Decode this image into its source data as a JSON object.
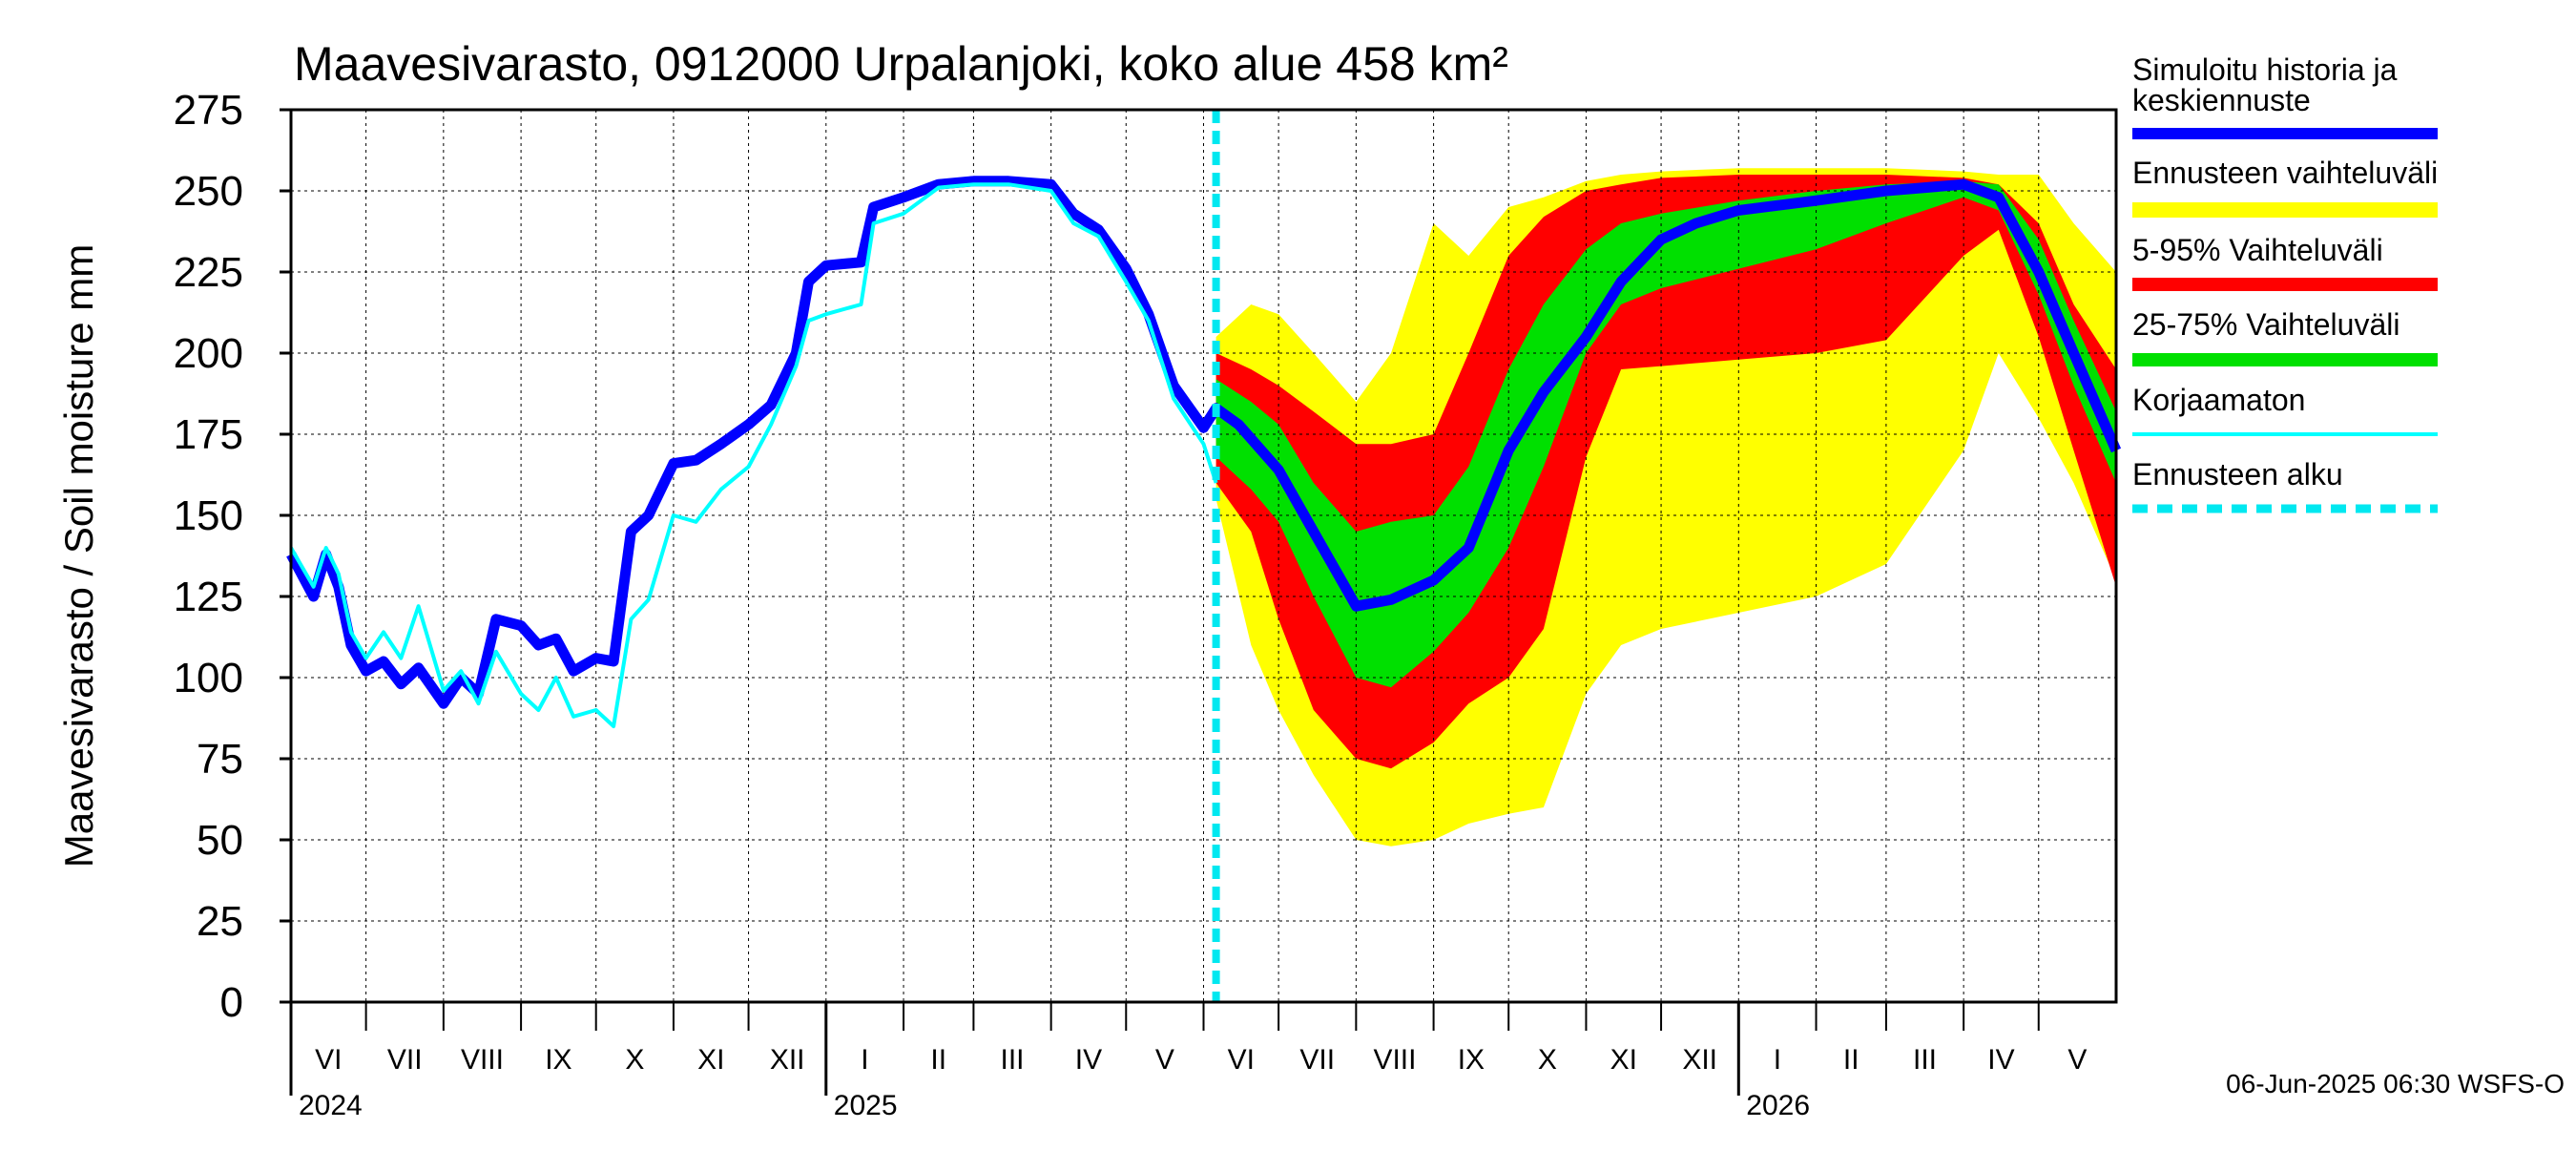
{
  "chart_data": {
    "type": "area",
    "title": "Maavesivarasto, 0912000 Urpalanjoki, koko alue 458 km²",
    "ylabel": "Maavesivarasto / Soil moisture   mm",
    "ylim": [
      0,
      275
    ],
    "yticks": [
      0,
      25,
      50,
      75,
      100,
      125,
      150,
      175,
      200,
      225,
      250,
      275
    ],
    "grid": true,
    "legend_placement": "right",
    "x_range": [
      "2024-06-01",
      "2026-06-01"
    ],
    "forecast_start": "2025-06-06",
    "months": [
      {
        "label": "VI",
        "start": "2024-06-01"
      },
      {
        "label": "VII",
        "start": "2024-07-01"
      },
      {
        "label": "VIII",
        "start": "2024-08-01"
      },
      {
        "label": "IX",
        "start": "2024-09-01"
      },
      {
        "label": "X",
        "start": "2024-10-01"
      },
      {
        "label": "XI",
        "start": "2024-11-01"
      },
      {
        "label": "XII",
        "start": "2024-12-01"
      },
      {
        "label": "I",
        "start": "2025-01-01"
      },
      {
        "label": "II",
        "start": "2025-02-01"
      },
      {
        "label": "III",
        "start": "2025-03-01"
      },
      {
        "label": "IV",
        "start": "2025-04-01"
      },
      {
        "label": "V",
        "start": "2025-05-01"
      },
      {
        "label": "VI",
        "start": "2025-06-01"
      },
      {
        "label": "VII",
        "start": "2025-07-01"
      },
      {
        "label": "VIII",
        "start": "2025-08-01"
      },
      {
        "label": "IX",
        "start": "2025-09-01"
      },
      {
        "label": "X",
        "start": "2025-10-01"
      },
      {
        "label": "XI",
        "start": "2025-11-01"
      },
      {
        "label": "XII",
        "start": "2025-12-01"
      },
      {
        "label": "I",
        "start": "2026-01-01"
      },
      {
        "label": "II",
        "start": "2026-02-01"
      },
      {
        "label": "III",
        "start": "2026-03-01"
      },
      {
        "label": "IV",
        "start": "2026-04-01"
      },
      {
        "label": "V",
        "start": "2026-05-01"
      }
    ],
    "years": [
      {
        "label": "2024",
        "start": "2024-06-01"
      },
      {
        "label": "2025",
        "start": "2025-01-01"
      },
      {
        "label": "2026",
        "start": "2026-01-01"
      }
    ],
    "colors": {
      "simulated": "#0000ff",
      "uncorrected": "#00ffff",
      "range_full": "#ffff00",
      "range_5_95": "#ff0000",
      "range_25_75": "#00e000",
      "forecast_start": "#00e8f0"
    },
    "series": [
      {
        "name": "Simuloitu historia ja keskiennuste",
        "points": [
          [
            "2024-06-01",
            138
          ],
          [
            "2024-06-10",
            125
          ],
          [
            "2024-06-15",
            138
          ],
          [
            "2024-06-20",
            128
          ],
          [
            "2024-06-25",
            110
          ],
          [
            "2024-07-01",
            102
          ],
          [
            "2024-07-08",
            105
          ],
          [
            "2024-07-15",
            98
          ],
          [
            "2024-07-22",
            103
          ],
          [
            "2024-08-01",
            92
          ],
          [
            "2024-08-08",
            100
          ],
          [
            "2024-08-15",
            95
          ],
          [
            "2024-08-22",
            118
          ],
          [
            "2024-09-01",
            116
          ],
          [
            "2024-09-08",
            110
          ],
          [
            "2024-09-15",
            112
          ],
          [
            "2024-09-22",
            102
          ],
          [
            "2024-10-01",
            106
          ],
          [
            "2024-10-08",
            105
          ],
          [
            "2024-10-15",
            145
          ],
          [
            "2024-10-22",
            150
          ],
          [
            "2024-11-01",
            166
          ],
          [
            "2024-11-10",
            167
          ],
          [
            "2024-11-20",
            172
          ],
          [
            "2024-12-01",
            178
          ],
          [
            "2024-12-10",
            184
          ],
          [
            "2024-12-20",
            200
          ],
          [
            "2024-12-25",
            222
          ],
          [
            "2025-01-01",
            227
          ],
          [
            "2025-01-15",
            228
          ],
          [
            "2025-01-20",
            245
          ],
          [
            "2025-02-01",
            248
          ],
          [
            "2025-02-15",
            252
          ],
          [
            "2025-03-01",
            253
          ],
          [
            "2025-03-15",
            253
          ],
          [
            "2025-04-01",
            252
          ],
          [
            "2025-04-10",
            243
          ],
          [
            "2025-04-20",
            238
          ],
          [
            "2025-05-01",
            226
          ],
          [
            "2025-05-10",
            212
          ],
          [
            "2025-05-20",
            190
          ],
          [
            "2025-06-01",
            177
          ],
          [
            "2025-06-06",
            183
          ],
          [
            "2025-06-15",
            178
          ],
          [
            "2025-07-01",
            164
          ],
          [
            "2025-07-15",
            145
          ],
          [
            "2025-08-01",
            122
          ],
          [
            "2025-08-15",
            124
          ],
          [
            "2025-09-01",
            130
          ],
          [
            "2025-09-15",
            140
          ],
          [
            "2025-10-01",
            170
          ],
          [
            "2025-10-15",
            188
          ],
          [
            "2025-11-01",
            205
          ],
          [
            "2025-11-15",
            222
          ],
          [
            "2025-12-01",
            235
          ],
          [
            "2025-12-15",
            240
          ],
          [
            "2026-01-01",
            244
          ],
          [
            "2026-02-01",
            247
          ],
          [
            "2026-03-01",
            250
          ],
          [
            "2026-04-01",
            252
          ],
          [
            "2026-04-15",
            248
          ],
          [
            "2026-05-01",
            225
          ],
          [
            "2026-05-15",
            200
          ],
          [
            "2026-06-01",
            170
          ]
        ]
      },
      {
        "name": "Korjaamaton",
        "points": [
          [
            "2024-06-01",
            140
          ],
          [
            "2024-06-10",
            128
          ],
          [
            "2024-06-15",
            140
          ],
          [
            "2024-06-20",
            132
          ],
          [
            "2024-06-25",
            114
          ],
          [
            "2024-07-01",
            106
          ],
          [
            "2024-07-08",
            114
          ],
          [
            "2024-07-15",
            106
          ],
          [
            "2024-07-22",
            122
          ],
          [
            "2024-08-01",
            96
          ],
          [
            "2024-08-08",
            102
          ],
          [
            "2024-08-15",
            92
          ],
          [
            "2024-08-22",
            108
          ],
          [
            "2024-09-01",
            95
          ],
          [
            "2024-09-08",
            90
          ],
          [
            "2024-09-15",
            100
          ],
          [
            "2024-09-22",
            88
          ],
          [
            "2024-10-01",
            90
          ],
          [
            "2024-10-08",
            85
          ],
          [
            "2024-10-15",
            118
          ],
          [
            "2024-10-22",
            124
          ],
          [
            "2024-11-01",
            150
          ],
          [
            "2024-11-10",
            148
          ],
          [
            "2024-11-20",
            158
          ],
          [
            "2024-12-01",
            165
          ],
          [
            "2024-12-10",
            178
          ],
          [
            "2024-12-20",
            196
          ],
          [
            "2024-12-25",
            210
          ],
          [
            "2025-01-01",
            212
          ],
          [
            "2025-01-15",
            215
          ],
          [
            "2025-01-20",
            240
          ],
          [
            "2025-02-01",
            243
          ],
          [
            "2025-02-15",
            251
          ],
          [
            "2025-03-01",
            252
          ],
          [
            "2025-03-15",
            252
          ],
          [
            "2025-04-01",
            250
          ],
          [
            "2025-04-10",
            240
          ],
          [
            "2025-04-20",
            236
          ],
          [
            "2025-05-01",
            222
          ],
          [
            "2025-05-10",
            210
          ],
          [
            "2025-05-20",
            186
          ],
          [
            "2025-06-01",
            172
          ],
          [
            "2025-06-06",
            160
          ]
        ]
      }
    ],
    "bands": [
      {
        "name": "Ennusteen vaihteluväli",
        "points": [
          [
            "2025-06-06",
            155,
            205
          ],
          [
            "2025-06-20",
            110,
            215
          ],
          [
            "2025-07-01",
            90,
            212
          ],
          [
            "2025-07-15",
            70,
            200
          ],
          [
            "2025-08-01",
            50,
            185
          ],
          [
            "2025-08-15",
            48,
            200
          ],
          [
            "2025-09-01",
            50,
            240
          ],
          [
            "2025-09-15",
            55,
            230
          ],
          [
            "2025-10-01",
            58,
            245
          ],
          [
            "2025-10-15",
            60,
            248
          ],
          [
            "2025-11-01",
            95,
            253
          ],
          [
            "2025-11-15",
            110,
            255
          ],
          [
            "2025-12-01",
            115,
            256
          ],
          [
            "2026-01-01",
            120,
            257
          ],
          [
            "2026-02-01",
            125,
            257
          ],
          [
            "2026-03-01",
            135,
            257
          ],
          [
            "2026-04-01",
            170,
            256
          ],
          [
            "2026-04-15",
            200,
            255
          ],
          [
            "2026-05-01",
            180,
            255
          ],
          [
            "2026-05-15",
            160,
            240
          ],
          [
            "2026-06-01",
            130,
            225
          ]
        ]
      },
      {
        "name": "5-95% Vaihteluväli",
        "points": [
          [
            "2025-06-06",
            160,
            200
          ],
          [
            "2025-06-20",
            145,
            195
          ],
          [
            "2025-07-01",
            118,
            190
          ],
          [
            "2025-07-15",
            90,
            182
          ],
          [
            "2025-08-01",
            75,
            172
          ],
          [
            "2025-08-15",
            72,
            172
          ],
          [
            "2025-09-01",
            80,
            175
          ],
          [
            "2025-09-15",
            92,
            200
          ],
          [
            "2025-10-01",
            100,
            230
          ],
          [
            "2025-10-15",
            115,
            242
          ],
          [
            "2025-11-01",
            168,
            250
          ],
          [
            "2025-11-15",
            195,
            252
          ],
          [
            "2025-12-01",
            196,
            254
          ],
          [
            "2026-01-01",
            198,
            255
          ],
          [
            "2026-02-01",
            200,
            255
          ],
          [
            "2026-03-01",
            204,
            255
          ],
          [
            "2026-04-01",
            230,
            254
          ],
          [
            "2026-04-15",
            238,
            252
          ],
          [
            "2026-05-01",
            205,
            240
          ],
          [
            "2026-05-15",
            170,
            215
          ],
          [
            "2026-06-01",
            128,
            195
          ]
        ]
      },
      {
        "name": "25-75% Vaihteluväli",
        "points": [
          [
            "2025-06-06",
            168,
            192
          ],
          [
            "2025-06-20",
            158,
            185
          ],
          [
            "2025-07-01",
            148,
            178
          ],
          [
            "2025-07-15",
            125,
            160
          ],
          [
            "2025-08-01",
            100,
            145
          ],
          [
            "2025-08-15",
            97,
            148
          ],
          [
            "2025-09-01",
            108,
            150
          ],
          [
            "2025-09-15",
            120,
            165
          ],
          [
            "2025-10-01",
            140,
            195
          ],
          [
            "2025-10-15",
            165,
            215
          ],
          [
            "2025-11-01",
            200,
            232
          ],
          [
            "2025-11-15",
            215,
            240
          ],
          [
            "2025-12-01",
            220,
            243
          ],
          [
            "2026-01-01",
            226,
            247
          ],
          [
            "2026-02-01",
            232,
            250
          ],
          [
            "2026-03-01",
            240,
            252
          ],
          [
            "2026-04-01",
            248,
            253
          ],
          [
            "2026-04-15",
            244,
            252
          ],
          [
            "2026-05-01",
            218,
            235
          ],
          [
            "2026-05-15",
            190,
            210
          ],
          [
            "2026-06-01",
            160,
            182
          ]
        ]
      }
    ],
    "legend": [
      {
        "key": "simulated",
        "label": "Simuloitu historia ja keskiennuste"
      },
      {
        "key": "range_full",
        "label": "Ennusteen vaihteluväli"
      },
      {
        "key": "range_5_95",
        "label": "5-95% Vaihteluväli"
      },
      {
        "key": "range_25_75",
        "label": "25-75% Vaihteluväli"
      },
      {
        "key": "uncorrected",
        "label": "Korjaamaton"
      },
      {
        "key": "forecast_start",
        "label": "Ennusteen alku"
      }
    ],
    "timestamp": "06-Jun-2025 06:30 WSFS-O"
  }
}
